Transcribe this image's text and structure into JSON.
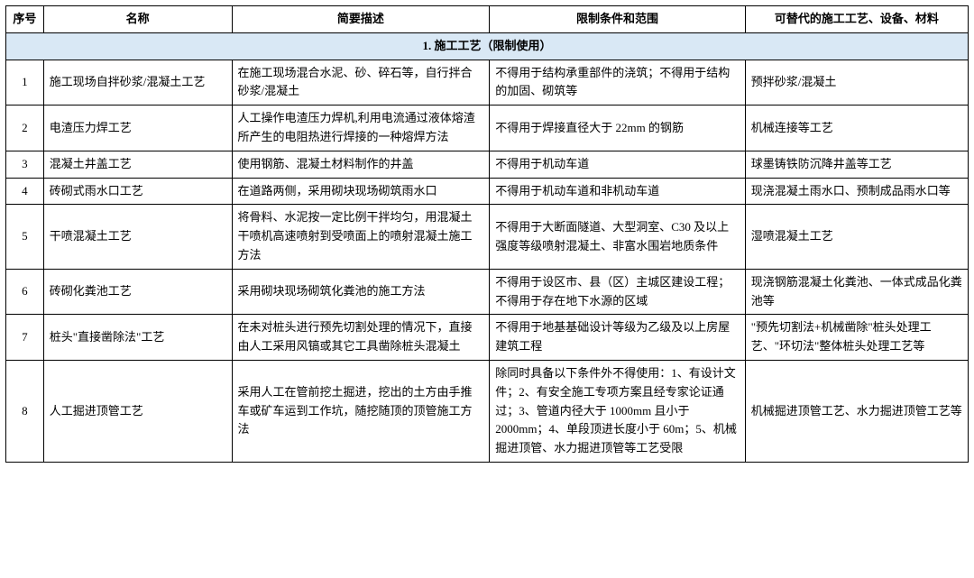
{
  "table": {
    "columns": [
      "序号",
      "名称",
      "简要描述",
      "限制条件和范围",
      "可替代的施工工艺、设备、材料"
    ],
    "section_title": "1. 施工工艺（限制使用）",
    "section_bg": "#d9e8f5",
    "rows": [
      {
        "num": "1",
        "name": "施工现场自拌砂浆/混凝土工艺",
        "desc": "在施工现场混合水泥、砂、碎石等，自行拌合砂浆/混凝土",
        "limit": "不得用于结构承重部件的浇筑；不得用于结构的加固、砌筑等",
        "alt": "预拌砂浆/混凝土"
      },
      {
        "num": "2",
        "name": "电渣压力焊工艺",
        "desc": "人工操作电渣压力焊机,利用电流通过液体熔渣所产生的电阻热进行焊接的一种熔焊方法",
        "limit": "不得用于焊接直径大于 22mm 的钢筋",
        "alt": "机械连接等工艺"
      },
      {
        "num": "3",
        "name": "混凝土井盖工艺",
        "desc": "使用钢筋、混凝土材料制作的井盖",
        "limit": "不得用于机动车道",
        "alt": "球墨铸铁防沉降井盖等工艺"
      },
      {
        "num": "4",
        "name": "砖砌式雨水口工艺",
        "desc": "在道路两侧，采用砌块现场砌筑雨水口",
        "limit": "不得用于机动车道和非机动车道",
        "alt": "现浇混凝土雨水口、预制成品雨水口等"
      },
      {
        "num": "5",
        "name": "干喷混凝土工艺",
        "desc": "将骨料、水泥按一定比例干拌均匀，用混凝土干喷机高速喷射到受喷面上的喷射混凝土施工方法",
        "limit": "不得用于大断面隧道、大型洞室、C30 及以上强度等级喷射混凝土、非富水围岩地质条件",
        "alt": "湿喷混凝土工艺"
      },
      {
        "num": "6",
        "name": "砖砌化粪池工艺",
        "desc": "采用砌块现场砌筑化粪池的施工方法",
        "limit": "不得用于设区市、县（区）主城区建设工程；不得用于存在地下水源的区域",
        "alt": "现浇钢筋混凝土化粪池、一体式成品化粪池等"
      },
      {
        "num": "7",
        "name": "桩头\"直接凿除法\"工艺",
        "desc": "在未对桩头进行预先切割处理的情况下，直接由人工采用风镐或其它工具凿除桩头混凝土",
        "limit": "不得用于地基基础设计等级为乙级及以上房屋建筑工程",
        "alt": "\"预先切割法+机械凿除\"桩头处理工艺、\"环切法\"整体桩头处理工艺等"
      },
      {
        "num": "8",
        "name": "人工掘进顶管工艺",
        "desc": "采用人工在管前挖土掘进，挖出的土方由手推车或矿车运到工作坑，随挖随顶的顶管施工方法",
        "limit": "除同时具备以下条件外不得使用：1、有设计文件；2、有安全施工专项方案且经专家论证通过；3、管道内径大于 1000mm 且小于 2000mm；4、单段顶进长度小于 60m；5、机械掘进顶管、水力掘进顶管等工艺受限",
        "alt": "机械掘进顶管工艺、水力掘进顶管工艺等"
      }
    ]
  }
}
